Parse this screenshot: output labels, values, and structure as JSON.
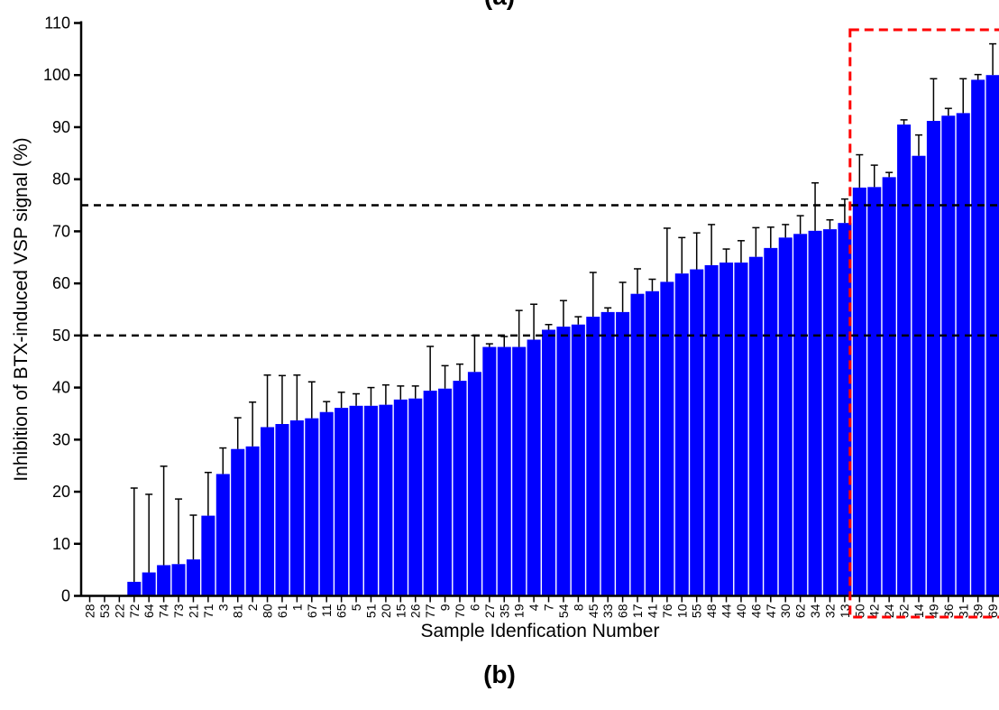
{
  "panel_labels": {
    "top": "(a)",
    "bottom": "(b)"
  },
  "chart_data": {
    "type": "bar",
    "xlabel": "Sample Idenfication Number",
    "ylabel": "Inhibition of BTX-induced VSP signal (%)",
    "ylim": [
      0,
      110
    ],
    "yticks": [
      0,
      10,
      20,
      30,
      40,
      50,
      60,
      70,
      80,
      90,
      100,
      110
    ],
    "bar_color": "#0000ff",
    "reference_lines": [
      50,
      75
    ],
    "reference_line_color": "#000000",
    "highlight_box_color": "#ff0000",
    "highlight_from_category": "50",
    "grid": false,
    "legend": "none",
    "categories": [
      "28",
      "53",
      "22",
      "72",
      "64",
      "74",
      "73",
      "21",
      "71",
      "3",
      "81",
      "2",
      "80",
      "61",
      "1",
      "67",
      "11",
      "65",
      "5",
      "51",
      "20",
      "15",
      "26",
      "77",
      "9",
      "70",
      "6",
      "27",
      "35",
      "19",
      "4",
      "7",
      "54",
      "8",
      "45",
      "33",
      "68",
      "17",
      "41",
      "76",
      "10",
      "55",
      "48",
      "44",
      "40",
      "46",
      "47",
      "30",
      "62",
      "34",
      "32",
      "13",
      "50",
      "42",
      "24",
      "52",
      "14",
      "49",
      "36",
      "31",
      "39",
      "69"
    ],
    "values": [
      0,
      0,
      0,
      2.7,
      4.5,
      5.9,
      6.1,
      7,
      15.4,
      23.4,
      28.2,
      28.7,
      32.4,
      33,
      33.7,
      34.1,
      35.3,
      36.1,
      36.5,
      36.5,
      36.7,
      37.7,
      37.9,
      39.4,
      39.8,
      41.3,
      43,
      47.8,
      47.8,
      47.8,
      49.2,
      51.1,
      51.7,
      52.1,
      53.6,
      54.5,
      54.5,
      58,
      58.5,
      60.3,
      61.9,
      62.7,
      63.5,
      64,
      64,
      65.1,
      66.8,
      68.8,
      69.5,
      70.1,
      70.4,
      71.6,
      78.4,
      78.5,
      80.4,
      90.5,
      84.5,
      91.2,
      92.2,
      92.7,
      99.1,
      100
    ],
    "errors": [
      0,
      0,
      0,
      18,
      15,
      19,
      12.5,
      8.5,
      8.3,
      5,
      6,
      8.5,
      10,
      9.3,
      8.7,
      7,
      2,
      3,
      2.3,
      3.5,
      3.8,
      2.6,
      2.4,
      8.5,
      4.4,
      3.2,
      7,
      0.6,
      2,
      7,
      6.8,
      1,
      5,
      1.5,
      8.5,
      0.8,
      5.7,
      4.8,
      2.3,
      10.3,
      6.9,
      7,
      7.8,
      2.6,
      4.2,
      5.6,
      4,
      2.5,
      3.5,
      9.2,
      1.8,
      4.6,
      6.3,
      4.2,
      0.9,
      0.9,
      4,
      8.1,
      1.4,
      6.6,
      1,
      6
    ]
  }
}
